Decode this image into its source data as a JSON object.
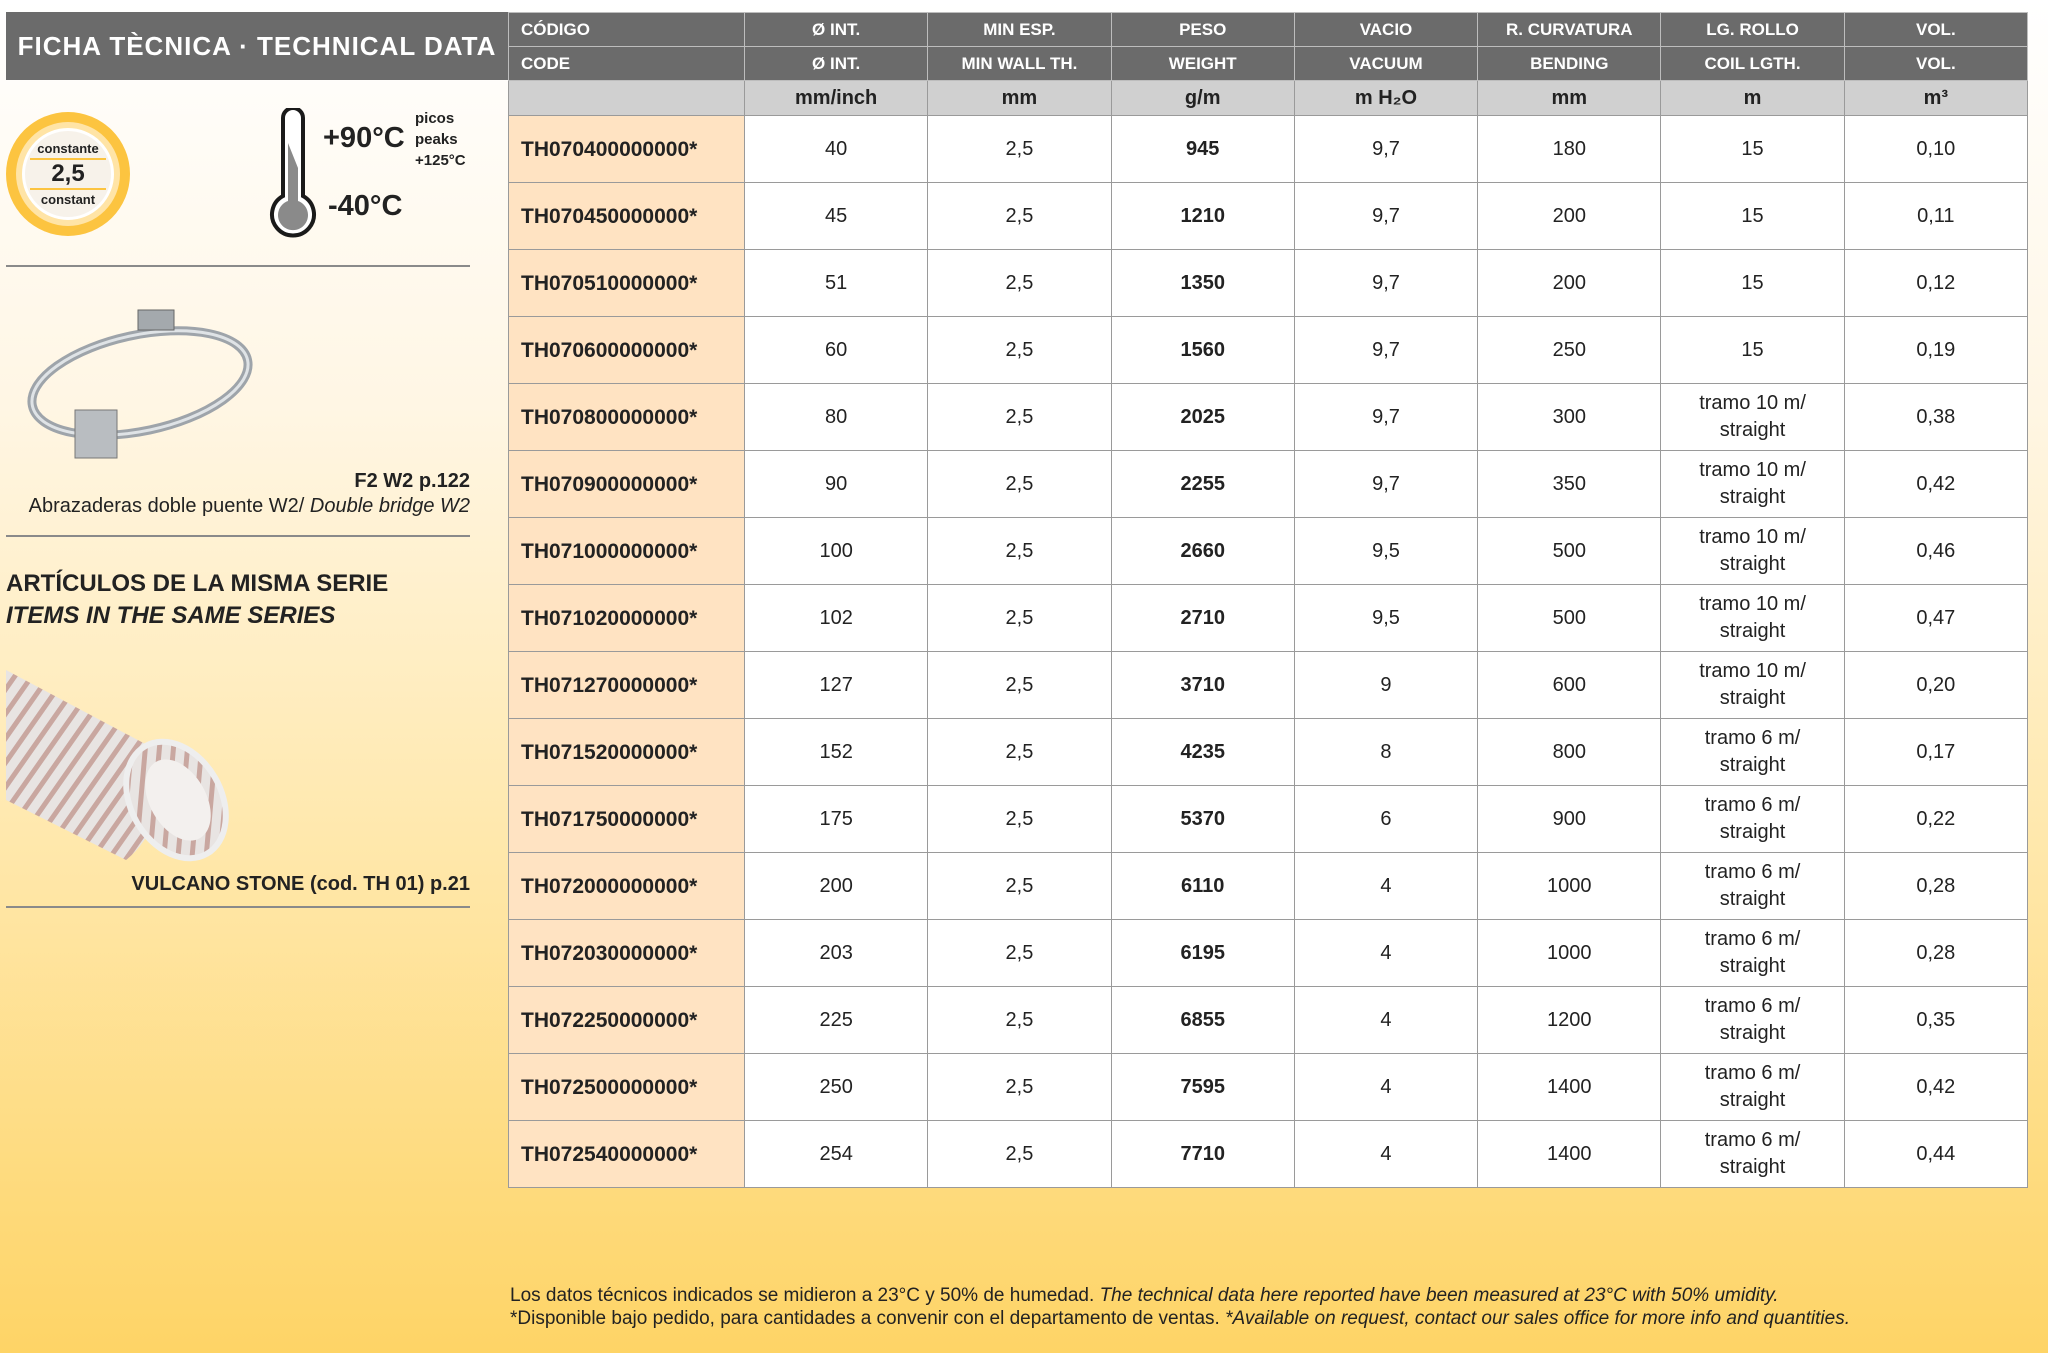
{
  "title": "FICHA TÈCNICA · TECHNICAL DATA",
  "badge": {
    "top": "constante",
    "value": "2,5",
    "bottom": "constant"
  },
  "temperature": {
    "max": "+90°C",
    "min": "-40°C",
    "peaks_es": "picos",
    "peaks_en": "peaks",
    "peaks_value": "+125°C"
  },
  "accessory": {
    "ref": "F2 W2 p.122",
    "desc_es": "Abrazaderas doble puente W2/",
    "desc_en": "Double bridge W2"
  },
  "series": {
    "title_es": "ARTÍCULOS DE LA MISMA SERIE",
    "title_en": "ITEMS IN THE SAME SERIES",
    "item": "VULCANO STONE (cod. TH 01) p.21"
  },
  "table": {
    "header_es": [
      "CÓDIGO",
      "Ø INT.",
      "MIN ESP.",
      "PESO",
      "VACIO",
      "R. CURVATURA",
      "LG. ROLLO",
      "VOL."
    ],
    "header_en": [
      "CODE",
      "Ø INT.",
      "MIN WALL TH.",
      "WEIGHT",
      "VACUUM",
      "BENDING",
      "COIL LGTH.",
      "VOL."
    ],
    "units": [
      "",
      "mm/inch",
      "mm",
      "g/m",
      "m H₂O",
      "mm",
      "m",
      "m³"
    ],
    "rows": [
      [
        "TH070400000000*",
        "40",
        "2,5",
        "945",
        "9,7",
        "180",
        "15",
        "0,10"
      ],
      [
        "TH070450000000*",
        "45",
        "2,5",
        "1210",
        "9,7",
        "200",
        "15",
        "0,11"
      ],
      [
        "TH070510000000*",
        "51",
        "2,5",
        "1350",
        "9,7",
        "200",
        "15",
        "0,12"
      ],
      [
        "TH070600000000*",
        "60",
        "2,5",
        "1560",
        "9,7",
        "250",
        "15",
        "0,19"
      ],
      [
        "TH070800000000*",
        "80",
        "2,5",
        "2025",
        "9,7",
        "300",
        "tramo 10 m/ straight",
        "0,38"
      ],
      [
        "TH070900000000*",
        "90",
        "2,5",
        "2255",
        "9,7",
        "350",
        "tramo 10 m/ straight",
        "0,42"
      ],
      [
        "TH071000000000*",
        "100",
        "2,5",
        "2660",
        "9,5",
        "500",
        "tramo 10 m/ straight",
        "0,46"
      ],
      [
        "TH071020000000*",
        "102",
        "2,5",
        "2710",
        "9,5",
        "500",
        "tramo 10 m/ straight",
        "0,47"
      ],
      [
        "TH071270000000*",
        "127",
        "2,5",
        "3710",
        "9",
        "600",
        "tramo 10 m/ straight",
        "0,20"
      ],
      [
        "TH071520000000*",
        "152",
        "2,5",
        "4235",
        "8",
        "800",
        "tramo 6 m/ straight",
        "0,17"
      ],
      [
        "TH071750000000*",
        "175",
        "2,5",
        "5370",
        "6",
        "900",
        "tramo 6 m/ straight",
        "0,22"
      ],
      [
        "TH072000000000*",
        "200",
        "2,5",
        "6110",
        "4",
        "1000",
        "tramo 6 m/ straight",
        "0,28"
      ],
      [
        "TH072030000000*",
        "203",
        "2,5",
        "6195",
        "4",
        "1000",
        "tramo 6 m/ straight",
        "0,28"
      ],
      [
        "TH072250000000*",
        "225",
        "2,5",
        "6855",
        "4",
        "1200",
        "tramo 6 m/ straight",
        "0,35"
      ],
      [
        "TH072500000000*",
        "250",
        "2,5",
        "7595",
        "4",
        "1400",
        "tramo 6 m/ straight",
        "0,42"
      ],
      [
        "TH072540000000*",
        "254",
        "2,5",
        "7710",
        "4",
        "1400",
        "tramo 6 m/ straight",
        "0,44"
      ]
    ]
  },
  "footer": {
    "line1_es": "Los datos técnicos indicados se midieron a 23°C y 50% de humedad.",
    "line1_en": "The technical data here reported have been measured at 23°C with 50% umidity.",
    "line2_es": "*Disponible bajo pedido, para cantidades a convenir con el departamento de ventas.",
    "line2_en": "*Available on request, contact our sales office for more info and quantities."
  },
  "colors": {
    "header": "#6b6b6b",
    "code_cell": "#ffe3c2",
    "accent": "#fcc440"
  }
}
